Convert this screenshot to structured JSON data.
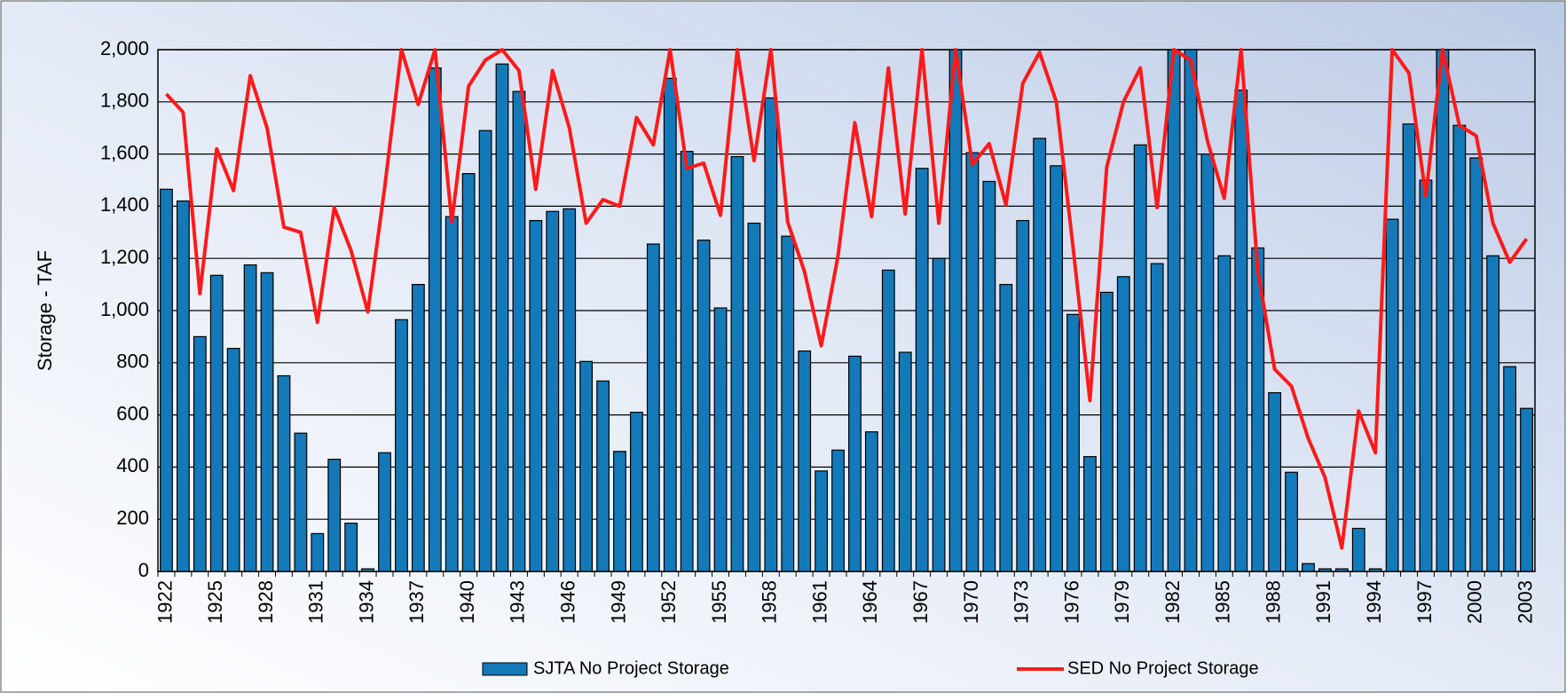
{
  "chart_data": {
    "type": "bar",
    "y_label": "Storage - TAF",
    "categories": [
      "1922",
      null,
      null,
      "1925",
      null,
      null,
      "1928",
      null,
      null,
      "1931",
      null,
      null,
      "1934",
      null,
      null,
      "1937",
      null,
      null,
      "1940",
      null,
      null,
      "1943",
      null,
      null,
      "1946",
      null,
      null,
      "1949",
      null,
      null,
      "1952",
      null,
      null,
      "1955",
      null,
      null,
      "1958",
      null,
      null,
      "1961",
      null,
      null,
      "1964",
      null,
      null,
      "1967",
      null,
      null,
      "1970",
      null,
      null,
      "1973",
      null,
      null,
      "1976",
      null,
      null,
      "1979",
      null,
      null,
      "1982",
      null,
      null,
      "1985",
      null,
      null,
      "1988",
      null,
      null,
      "1991",
      null,
      null,
      "1994",
      null,
      null,
      "1997",
      null,
      null,
      "2000",
      null,
      null,
      "2003"
    ],
    "series": [
      {
        "name": "SJTA No Project Storage",
        "type": "bar",
        "color": "#1479b8",
        "values": [
          1465,
          1420,
          900,
          1135,
          855,
          1175,
          1145,
          750,
          530,
          145,
          430,
          185,
          10,
          455,
          965,
          1100,
          1930,
          1360,
          1525,
          1690,
          1945,
          1840,
          1345,
          1380,
          1390,
          805,
          730,
          460,
          610,
          1255,
          1890,
          1610,
          1270,
          1010,
          1590,
          1335,
          1815,
          1285,
          845,
          385,
          465,
          825,
          535,
          1155,
          840,
          1545,
          1200,
          2000,
          1605,
          1495,
          1100,
          1345,
          1660,
          1555,
          985,
          440,
          1070,
          1130,
          1635,
          1180,
          2000,
          2000,
          1600,
          1210,
          1845,
          1240,
          685,
          380,
          30,
          10,
          10,
          165,
          10,
          1350,
          1715,
          1500,
          2000,
          1710,
          1585,
          1210,
          785,
          625
        ]
      },
      {
        "name": "SED No Project Storage",
        "type": "line",
        "color": "#ff1a1a",
        "values": [
          1830,
          1760,
          1065,
          1620,
          1460,
          1900,
          1700,
          1320,
          1300,
          955,
          1395,
          1230,
          995,
          1470,
          2000,
          1790,
          2000,
          1340,
          1860,
          1960,
          2000,
          1920,
          1465,
          1920,
          1700,
          1335,
          1425,
          1400,
          1740,
          1635,
          2000,
          1545,
          1565,
          1365,
          2000,
          1575,
          2000,
          1340,
          1150,
          865,
          1210,
          1720,
          1360,
          1930,
          1370,
          2000,
          1335,
          2000,
          1560,
          1640,
          1405,
          1870,
          1990,
          1800,
          1240,
          655,
          1550,
          1800,
          1930,
          1395,
          2000,
          1960,
          1650,
          1430,
          2000,
          1150,
          775,
          710,
          510,
          360,
          90,
          615,
          455,
          2000,
          1910,
          1440,
          2000,
          1710,
          1670,
          1335,
          1185,
          1275
        ]
      }
    ],
    "ylim": [
      0,
      2000
    ],
    "yticks": [
      0,
      200,
      400,
      600,
      800,
      {
        "value": 1000,
        "label": "1,000"
      },
      {
        "value": 1200,
        "label": "1,200"
      },
      {
        "value": 1400,
        "label": "1,400"
      },
      {
        "value": 1600,
        "label": "1,600"
      },
      {
        "value": 1800,
        "label": "1,800"
      },
      {
        "value": 2000,
        "label": "2,000"
      }
    ],
    "grid": true,
    "legend": "bottom"
  }
}
